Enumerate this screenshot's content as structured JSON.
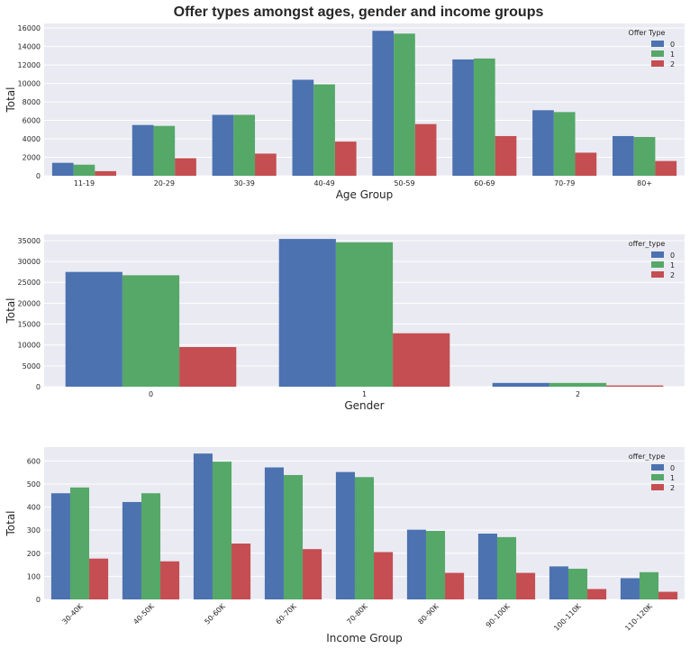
{
  "title": "Offer types amongst ages, gender and income groups",
  "colors": {
    "0": "#4c72b0",
    "1": "#55a868",
    "2": "#c44e52",
    "background": "#eaeaf2",
    "grid": "#ffffff"
  },
  "chart_data": [
    {
      "type": "bar",
      "xlabel": "Age Group",
      "ylabel": "Total",
      "ylim": [
        0,
        16500
      ],
      "yticks": [
        0,
        2000,
        4000,
        6000,
        8000,
        10000,
        12000,
        14000,
        16000
      ],
      "categories": [
        "11-19",
        "20-29",
        "30-39",
        "40-49",
        "50-59",
        "60-69",
        "70-79",
        "80+"
      ],
      "legend_title": "Offer Type",
      "legend_position": "top-right",
      "grid": true,
      "series": [
        {
          "name": "0",
          "values": [
            1400,
            5500,
            6600,
            10400,
            15700,
            12600,
            7100,
            4300
          ]
        },
        {
          "name": "1",
          "values": [
            1200,
            5400,
            6600,
            9900,
            15400,
            12700,
            6900,
            4200
          ]
        },
        {
          "name": "2",
          "values": [
            500,
            1900,
            2400,
            3700,
            5600,
            4300,
            2500,
            1600
          ]
        }
      ]
    },
    {
      "type": "bar",
      "xlabel": "Gender",
      "ylabel": "Total",
      "ylim": [
        0,
        36500
      ],
      "yticks": [
        0,
        5000,
        10000,
        15000,
        20000,
        25000,
        30000,
        35000
      ],
      "categories": [
        "0",
        "1",
        "2"
      ],
      "legend_title": "offer_type",
      "legend_position": "top-right",
      "grid": true,
      "series": [
        {
          "name": "0",
          "values": [
            27500,
            35400,
            900
          ]
        },
        {
          "name": "1",
          "values": [
            26700,
            34600,
            900
          ]
        },
        {
          "name": "2",
          "values": [
            9500,
            12800,
            300
          ]
        }
      ]
    },
    {
      "type": "bar",
      "xlabel": "Income Group",
      "ylabel": "Total",
      "ylim": [
        0,
        660
      ],
      "yticks": [
        0,
        100,
        200,
        300,
        400,
        500,
        600
      ],
      "categories": [
        "30-40K",
        "40-50K",
        "50-60K",
        "60-70K",
        "70-80K",
        "80-90K",
        "90-100K",
        "100-110K",
        "110-120K"
      ],
      "legend_title": "offer_type",
      "legend_position": "top-right",
      "grid": true,
      "series": [
        {
          "name": "0",
          "values": [
            460,
            422,
            632,
            572,
            552,
            302,
            285,
            143,
            92
          ]
        },
        {
          "name": "1",
          "values": [
            485,
            460,
            597,
            539,
            530,
            297,
            270,
            133,
            118
          ]
        },
        {
          "name": "2",
          "values": [
            177,
            165,
            242,
            218,
            205,
            115,
            115,
            45,
            33
          ]
        }
      ]
    }
  ]
}
